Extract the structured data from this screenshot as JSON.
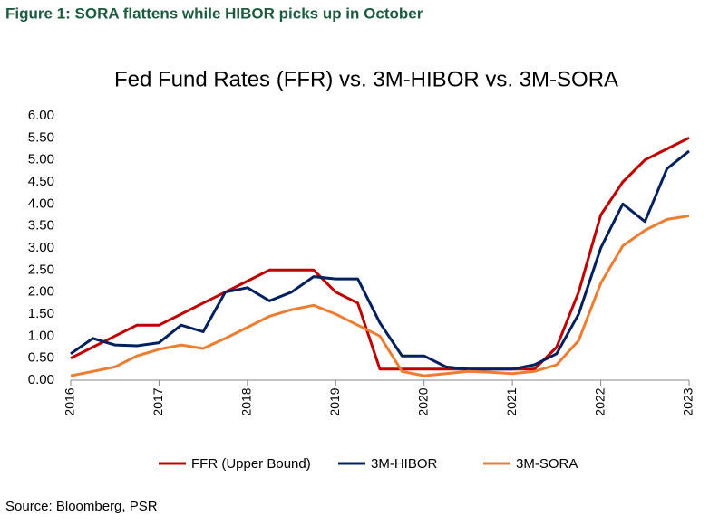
{
  "figure_title": "Figure 1: SORA flattens while HIBOR picks up in October",
  "source": "Source: Bloomberg, PSR",
  "chart_data": {
    "type": "line",
    "title": "Fed Fund Rates (FFR) vs. 3M-HIBOR vs. 3M-SORA",
    "x": [
      2016,
      2016.25,
      2016.5,
      2016.75,
      2017,
      2017.25,
      2017.5,
      2017.75,
      2018,
      2018.25,
      2018.5,
      2018.75,
      2019,
      2019.25,
      2019.5,
      2019.75,
      2020,
      2020.25,
      2020.5,
      2020.75,
      2021,
      2021.25,
      2021.5,
      2021.75,
      2022,
      2022.25,
      2022.5,
      2022.75,
      2023
    ],
    "series": [
      {
        "name": "FFR (Upper Bound)",
        "color": "#c00000",
        "values": [
          0.5,
          0.75,
          1.0,
          1.25,
          1.25,
          1.5,
          1.75,
          2.0,
          2.25,
          2.5,
          2.5,
          2.5,
          2.0,
          1.75,
          0.25,
          0.25,
          0.25,
          0.25,
          0.25,
          0.25,
          0.25,
          0.25,
          0.75,
          2.0,
          3.75,
          4.5,
          5.0,
          5.25,
          5.5
        ]
      },
      {
        "name": "3M-HIBOR",
        "color": "#002060",
        "values": [
          0.6,
          0.95,
          0.8,
          0.78,
          0.85,
          1.25,
          1.1,
          2.0,
          2.1,
          1.8,
          2.0,
          2.35,
          2.3,
          2.3,
          1.3,
          0.55,
          0.55,
          0.3,
          0.25,
          0.25,
          0.25,
          0.35,
          0.6,
          1.5,
          3.0,
          4.0,
          3.6,
          4.8,
          5.2
        ]
      },
      {
        "name": "3M-SORA",
        "color": "#ed7d31",
        "values": [
          0.1,
          0.2,
          0.3,
          0.55,
          0.7,
          0.8,
          0.72,
          0.95,
          1.2,
          1.45,
          1.6,
          1.7,
          1.5,
          1.25,
          1.0,
          0.2,
          0.1,
          0.15,
          0.2,
          0.18,
          0.15,
          0.2,
          0.35,
          0.9,
          2.2,
          3.05,
          3.4,
          3.65,
          3.73
        ]
      }
    ],
    "xlim": [
      2016,
      2023
    ],
    "xticks": [
      2016,
      2017,
      2018,
      2019,
      2020,
      2021,
      2022,
      2023
    ],
    "ylim": [
      0,
      6
    ],
    "yticks": [
      {
        "value": 0,
        "label": "0.00"
      },
      {
        "value": 0.5,
        "label": "0.50"
      },
      {
        "value": 1,
        "label": "1.00"
      },
      {
        "value": 1.5,
        "label": "1.50"
      },
      {
        "value": 2,
        "label": "2.00"
      },
      {
        "value": 2.5,
        "label": "2.50"
      },
      {
        "value": 3,
        "label": "3.00"
      },
      {
        "value": 3.5,
        "label": "3.50"
      },
      {
        "value": 4,
        "label": "4.00"
      },
      {
        "value": 4.5,
        "label": "4.50"
      },
      {
        "value": 5,
        "label": "5.00"
      },
      {
        "value": 5.5,
        "label": "5.50"
      },
      {
        "value": 6,
        "label": "6.00"
      }
    ]
  }
}
